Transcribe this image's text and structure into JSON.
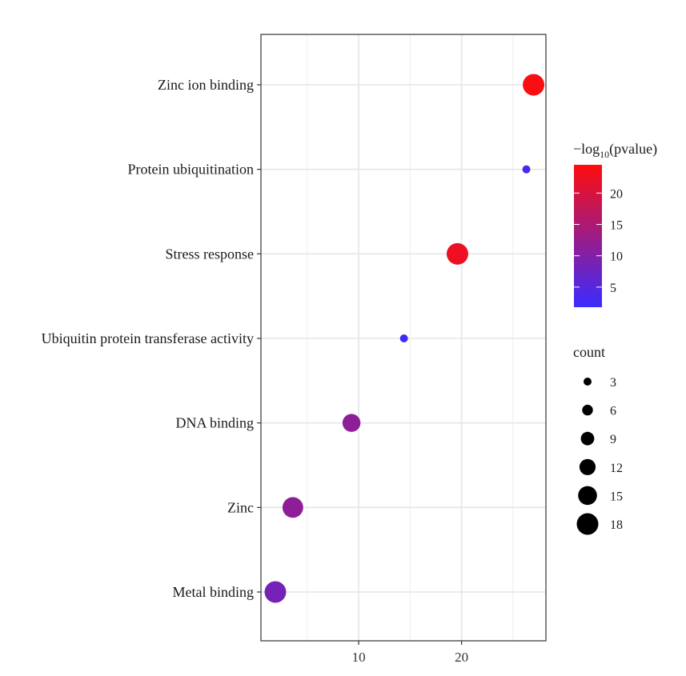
{
  "chart_data": {
    "type": "scatter",
    "title": "",
    "xlabel": "",
    "ylabel": "",
    "xlim": [
      0.5,
      28.2
    ],
    "x_ticks": [
      10,
      20
    ],
    "grid": true,
    "categories": [
      "Zinc ion binding",
      "Protein ubiquitination",
      "Stress response",
      "Ubiquitin protein transferase activity",
      "DNA binding",
      "Zinc",
      "Metal binding"
    ],
    "points": [
      {
        "category": "Zinc ion binding",
        "x": 27.0,
        "count": 18,
        "neglog10p": 24.0
      },
      {
        "category": "Protein ubiquitination",
        "x": 26.3,
        "count": 3,
        "neglog10p": 3.5
      },
      {
        "category": "Stress response",
        "x": 19.6,
        "count": 18,
        "neglog10p": 22.5
      },
      {
        "category": "Ubiquitin protein transferase activity",
        "x": 14.4,
        "count": 3,
        "neglog10p": 2.5
      },
      {
        "category": "DNA binding",
        "x": 9.3,
        "count": 14,
        "neglog10p": 11.5
      },
      {
        "category": "Zinc",
        "x": 3.6,
        "count": 17,
        "neglog10p": 11.5
      },
      {
        "category": "Metal binding",
        "x": 1.9,
        "count": 18,
        "neglog10p": 8.5
      }
    ],
    "color_legend": {
      "title_prefix": "−log",
      "title_sub": "10",
      "title_suffix": "(pvalue)",
      "ticks": [
        "5",
        "10",
        "15",
        "20"
      ],
      "tick_values": [
        5,
        10,
        15,
        20
      ],
      "range": [
        1.8,
        24.5
      ],
      "color_low": "#3a2bff",
      "color_high": "#ff0d0d"
    },
    "size_legend": {
      "title": "count",
      "labels": [
        "3",
        "6",
        "9",
        "12",
        "15",
        "18"
      ],
      "values": [
        3,
        6,
        9,
        12,
        15,
        18
      ]
    },
    "legend_position": "right"
  }
}
